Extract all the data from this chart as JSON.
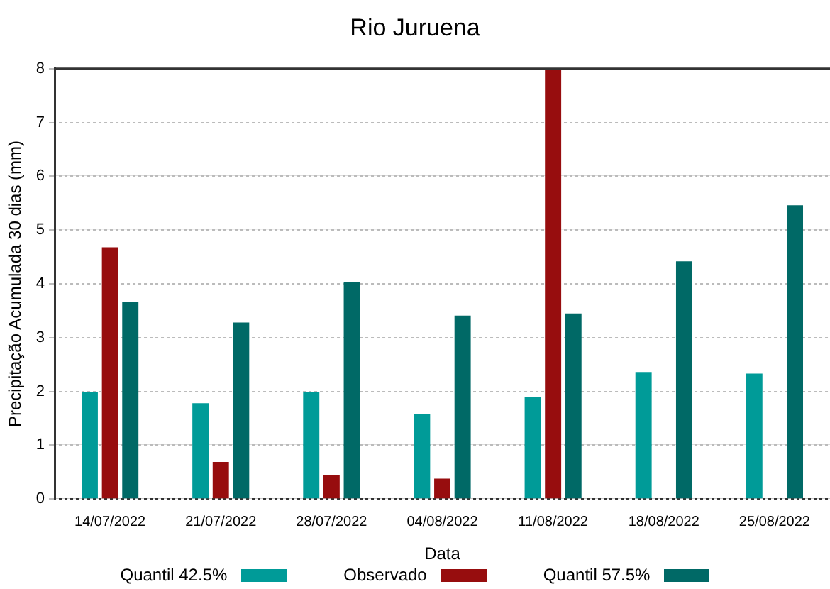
{
  "chart_data": {
    "type": "bar",
    "title": "Rio Juruena",
    "xlabel": "Data",
    "ylabel": "Precipitação Acumulada 30 dias (mm)",
    "categories": [
      "14/07/2022",
      "21/07/2022",
      "28/07/2022",
      "04/08/2022",
      "11/08/2022",
      "18/08/2022",
      "25/08/2022"
    ],
    "series": [
      {
        "name": "Quantil 42.5%",
        "color": "#009b98",
        "values": [
          1.98,
          1.78,
          1.98,
          1.58,
          1.89,
          2.36,
          2.33
        ]
      },
      {
        "name": "Observado",
        "color": "#970d0e",
        "values": [
          4.68,
          0.69,
          0.45,
          0.38,
          7.97,
          null,
          null
        ]
      },
      {
        "name": "Quantil 57.5%",
        "color": "#006966",
        "values": [
          3.66,
          3.28,
          4.03,
          3.41,
          3.45,
          4.42,
          5.46
        ]
      }
    ],
    "ylim": [
      0,
      8
    ],
    "yticks": [
      0,
      1,
      2,
      3,
      4,
      5,
      6,
      7,
      8
    ],
    "grid": "y",
    "legend": "bottom"
  }
}
